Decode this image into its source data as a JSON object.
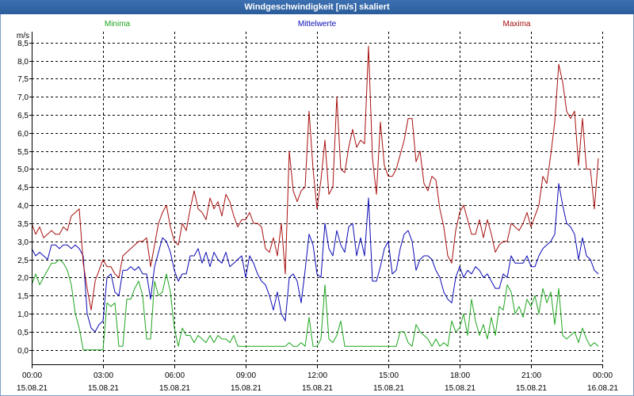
{
  "colors": {
    "titlebar": "#2b5d9c",
    "background": "#ffffff",
    "grid": "#000000"
  },
  "chart_data": {
    "type": "line",
    "title": "Windgeschwindigkeit [m/s] skaliert",
    "ylabel": "m/s",
    "xlim": [
      "15.08.21 00:00",
      "16.08.21 00:00"
    ],
    "ylim": [
      -0.4,
      8.8
    ],
    "grid": true,
    "legend_position": "top",
    "y_ticks": [
      {
        "value": 0.0,
        "label": "0,0"
      },
      {
        "value": 0.5,
        "label": "0,5"
      },
      {
        "value": 1.0,
        "label": "1,0"
      },
      {
        "value": 1.5,
        "label": "1,5"
      },
      {
        "value": 2.0,
        "label": "2,0"
      },
      {
        "value": 2.5,
        "label": "2,5"
      },
      {
        "value": 3.0,
        "label": "3,0"
      },
      {
        "value": 3.5,
        "label": "3,5"
      },
      {
        "value": 4.0,
        "label": "4,0"
      },
      {
        "value": 4.5,
        "label": "4,5"
      },
      {
        "value": 5.0,
        "label": "5,0"
      },
      {
        "value": 5.5,
        "label": "5,5"
      },
      {
        "value": 6.0,
        "label": "6,0"
      },
      {
        "value": 6.5,
        "label": "6,5"
      },
      {
        "value": 7.0,
        "label": "7,0"
      },
      {
        "value": 7.5,
        "label": "7,5"
      },
      {
        "value": 8.0,
        "label": "8,0"
      },
      {
        "value": 8.5,
        "label": "8,5"
      }
    ],
    "x_ticks": [
      {
        "at": "15.08.21 00:00",
        "label": "00:00",
        "date": "15.08.21"
      },
      {
        "at": "15.08.21 03:00",
        "label": "03:00",
        "date": "15.08.21"
      },
      {
        "at": "15.08.21 06:00",
        "label": "06:00",
        "date": "15.08.21"
      },
      {
        "at": "15.08.21 09:00",
        "label": "09:00",
        "date": "15.08.21"
      },
      {
        "at": "15.08.21 12:00",
        "label": "12:00",
        "date": "15.08.21"
      },
      {
        "at": "15.08.21 15:00",
        "label": "15:00",
        "date": "15.08.21"
      },
      {
        "at": "15.08.21 18:00",
        "label": "18:00",
        "date": "15.08.21"
      },
      {
        "at": "15.08.21 21:00",
        "label": "21:00",
        "date": "15.08.21"
      },
      {
        "at": "16.08.21 00:00",
        "label": "00:00",
        "date": "16.08.21"
      }
    ],
    "x": [
      "15.08.21 00:00",
      "15.08.21 00:10",
      "15.08.21 00:20",
      "15.08.21 00:30",
      "15.08.21 00:40",
      "15.08.21 00:50",
      "15.08.21 01:00",
      "15.08.21 01:10",
      "15.08.21 01:20",
      "15.08.21 01:30",
      "15.08.21 01:40",
      "15.08.21 01:50",
      "15.08.21 02:00",
      "15.08.21 02:10",
      "15.08.21 02:20",
      "15.08.21 02:30",
      "15.08.21 02:40",
      "15.08.21 02:50",
      "15.08.21 03:00",
      "15.08.21 03:10",
      "15.08.21 03:20",
      "15.08.21 03:30",
      "15.08.21 03:40",
      "15.08.21 03:50",
      "15.08.21 04:00",
      "15.08.21 04:10",
      "15.08.21 04:20",
      "15.08.21 04:30",
      "15.08.21 04:40",
      "15.08.21 04:50",
      "15.08.21 05:00",
      "15.08.21 05:10",
      "15.08.21 05:20",
      "15.08.21 05:30",
      "15.08.21 05:40",
      "15.08.21 05:50",
      "15.08.21 06:00",
      "15.08.21 06:10",
      "15.08.21 06:20",
      "15.08.21 06:30",
      "15.08.21 06:40",
      "15.08.21 06:50",
      "15.08.21 07:00",
      "15.08.21 07:10",
      "15.08.21 07:20",
      "15.08.21 07:30",
      "15.08.21 07:40",
      "15.08.21 07:50",
      "15.08.21 08:00",
      "15.08.21 08:10",
      "15.08.21 08:20",
      "15.08.21 08:30",
      "15.08.21 08:40",
      "15.08.21 08:50",
      "15.08.21 09:00",
      "15.08.21 09:10",
      "15.08.21 09:20",
      "15.08.21 09:30",
      "15.08.21 09:40",
      "15.08.21 09:50",
      "15.08.21 10:00",
      "15.08.21 10:10",
      "15.08.21 10:20",
      "15.08.21 10:30",
      "15.08.21 10:40",
      "15.08.21 10:50",
      "15.08.21 11:00",
      "15.08.21 11:10",
      "15.08.21 11:20",
      "15.08.21 11:30",
      "15.08.21 11:40",
      "15.08.21 11:50",
      "15.08.21 12:00",
      "15.08.21 12:10",
      "15.08.21 12:20",
      "15.08.21 12:30",
      "15.08.21 12:40",
      "15.08.21 12:50",
      "15.08.21 13:00",
      "15.08.21 13:10",
      "15.08.21 13:20",
      "15.08.21 13:30",
      "15.08.21 13:40",
      "15.08.21 13:50",
      "15.08.21 14:00",
      "15.08.21 14:10",
      "15.08.21 14:20",
      "15.08.21 14:30",
      "15.08.21 14:40",
      "15.08.21 14:50",
      "15.08.21 15:00",
      "15.08.21 15:10",
      "15.08.21 15:20",
      "15.08.21 15:30",
      "15.08.21 15:40",
      "15.08.21 15:50",
      "15.08.21 16:00",
      "15.08.21 16:10",
      "15.08.21 16:20",
      "15.08.21 16:30",
      "15.08.21 16:40",
      "15.08.21 16:50",
      "15.08.21 17:00",
      "15.08.21 17:10",
      "15.08.21 17:20",
      "15.08.21 17:30",
      "15.08.21 17:40",
      "15.08.21 17:50",
      "15.08.21 18:00",
      "15.08.21 18:10",
      "15.08.21 18:20",
      "15.08.21 18:30",
      "15.08.21 18:40",
      "15.08.21 18:50",
      "15.08.21 19:00",
      "15.08.21 19:10",
      "15.08.21 19:20",
      "15.08.21 19:30",
      "15.08.21 19:40",
      "15.08.21 19:50",
      "15.08.21 20:00",
      "15.08.21 20:10",
      "15.08.21 20:20",
      "15.08.21 20:30",
      "15.08.21 20:40",
      "15.08.21 20:50",
      "15.08.21 21:00",
      "15.08.21 21:10",
      "15.08.21 21:20",
      "15.08.21 21:30",
      "15.08.21 21:40",
      "15.08.21 21:50",
      "15.08.21 22:00",
      "15.08.21 22:10",
      "15.08.21 22:20",
      "15.08.21 22:30",
      "15.08.21 22:40",
      "15.08.21 22:50",
      "15.08.21 23:00",
      "15.08.21 23:10",
      "15.08.21 23:20",
      "15.08.21 23:30",
      "15.08.21 23:40",
      "15.08.21 23:50"
    ],
    "series": [
      {
        "name": "Minima",
        "color": "#1fa51f",
        "values": [
          1.8,
          2.1,
          1.8,
          2.0,
          2.2,
          2.4,
          2.4,
          2.5,
          2.4,
          2.2,
          1.8,
          1.0,
          0.6,
          0.0,
          0.0,
          0.0,
          0.0,
          0.0,
          0.0,
          1.3,
          1.2,
          1.3,
          0.1,
          0.1,
          1.4,
          1.4,
          1.7,
          1.9,
          1.5,
          0.3,
          0.3,
          1.9,
          1.5,
          1.6,
          2.1,
          1.6,
          0.6,
          0.1,
          0.6,
          0.4,
          0.4,
          0.2,
          0.4,
          0.3,
          0.2,
          0.4,
          0.2,
          0.4,
          0.3,
          0.3,
          0.2,
          0.4,
          0.1,
          0.1,
          0.1,
          0.1,
          0.1,
          0.1,
          0.1,
          0.1,
          0.1,
          0.1,
          0.1,
          0.1,
          0.1,
          0.2,
          0.1,
          0.1,
          0.2,
          0.1,
          0.9,
          0.1,
          0.1,
          0.3,
          1.8,
          0.3,
          0.2,
          0.4,
          0.8,
          0.1,
          0.1,
          0.1,
          0.1,
          0.1,
          0.1,
          0.1,
          0.1,
          0.1,
          0.1,
          0.1,
          0.1,
          0.1,
          0.1,
          0.5,
          0.5,
          0.2,
          0.1,
          0.7,
          0.5,
          0.4,
          0.3,
          0.1,
          0.3,
          0.1,
          0.2,
          0.1,
          0.8,
          0.5,
          0.6,
          1.0,
          0.4,
          1.4,
          0.8,
          0.4,
          0.7,
          0.3,
          0.9,
          0.4,
          1.2,
          1.1,
          1.8,
          1.6,
          1.0,
          1.2,
          0.9,
          1.4,
          1.2,
          1.5,
          1.0,
          1.7,
          1.3,
          1.6,
          0.7,
          1.7,
          0.4,
          0.3,
          0.4,
          0.5,
          0.2,
          0.6,
          0.3,
          0.1,
          0.2,
          0.1
        ]
      },
      {
        "name": "Mittelwerte",
        "color": "#0a0ab4",
        "values": [
          2.8,
          2.6,
          2.7,
          2.6,
          2.5,
          2.9,
          2.9,
          2.8,
          2.9,
          2.9,
          2.8,
          2.9,
          2.8,
          2.6,
          1.0,
          0.6,
          0.5,
          0.7,
          0.8,
          2.0,
          2.1,
          1.6,
          1.5,
          2.2,
          2.2,
          2.3,
          2.2,
          2.3,
          2.1,
          2.1,
          1.4,
          2.3,
          2.7,
          3.1,
          3.0,
          2.7,
          2.2,
          1.9,
          2.1,
          2.1,
          2.6,
          2.6,
          2.8,
          2.4,
          2.7,
          2.3,
          2.7,
          2.5,
          2.4,
          2.7,
          2.3,
          2.4,
          2.5,
          2.6,
          2.0,
          2.6,
          2.4,
          2.1,
          1.9,
          1.8,
          1.5,
          1.1,
          1.6,
          1.0,
          0.8,
          2.0,
          2.1,
          1.9,
          1.3,
          2.2,
          3.2,
          2.9,
          2.1,
          2.0,
          3.5,
          2.8,
          2.6,
          3.3,
          2.9,
          2.7,
          3.4,
          3.5,
          2.6,
          3.1,
          2.6,
          4.2,
          1.9,
          1.9,
          2.3,
          2.8,
          3.0,
          2.1,
          2.2,
          2.8,
          3.2,
          3.3,
          3.0,
          2.2,
          2.5,
          2.6,
          2.6,
          2.5,
          2.2,
          2.0,
          1.6,
          1.4,
          1.3,
          2.0,
          2.3,
          2.0,
          2.2,
          2.1,
          2.3,
          2.2,
          2.0,
          2.1,
          1.9,
          1.7,
          1.7,
          2.1,
          2.0,
          2.6,
          2.4,
          2.4,
          2.4,
          2.6,
          2.3,
          2.3,
          2.6,
          2.8,
          2.9,
          3.0,
          3.2,
          4.6,
          4.0,
          3.5,
          3.4,
          3.2,
          2.5,
          3.1,
          2.6,
          2.5,
          2.2,
          2.1
        ]
      },
      {
        "name": "Maxima",
        "color": "#a80f0f",
        "values": [
          3.5,
          3.2,
          3.4,
          3.1,
          3.2,
          3.3,
          3.2,
          3.2,
          3.4,
          3.3,
          3.7,
          3.8,
          3.9,
          2.4,
          1.7,
          1.1,
          1.9,
          2.2,
          2.5,
          2.3,
          2.3,
          2.1,
          2.0,
          2.6,
          2.7,
          2.8,
          2.9,
          3.0,
          3.0,
          3.1,
          2.3,
          2.9,
          3.5,
          3.8,
          4.0,
          3.4,
          3.0,
          2.9,
          3.5,
          3.3,
          3.9,
          4.4,
          3.9,
          3.8,
          3.6,
          4.2,
          3.9,
          4.1,
          3.7,
          4.3,
          4.1,
          3.7,
          3.4,
          3.6,
          3.6,
          3.8,
          3.5,
          3.5,
          3.4,
          2.8,
          2.7,
          3.1,
          2.6,
          3.5,
          2.1,
          5.5,
          4.4,
          4.1,
          4.4,
          4.5,
          6.6,
          5.0,
          3.9,
          4.7,
          5.8,
          4.3,
          4.5,
          7.0,
          5.0,
          4.9,
          5.6,
          6.1,
          5.6,
          5.8,
          5.7,
          8.4,
          5.3,
          4.3,
          6.3,
          5.1,
          4.8,
          4.8,
          5.0,
          5.4,
          5.8,
          6.4,
          6.4,
          5.2,
          5.5,
          4.6,
          4.4,
          4.8,
          4.7,
          3.9,
          3.4,
          2.6,
          2.4,
          3.3,
          3.8,
          4.0,
          3.6,
          3.2,
          3.2,
          3.6,
          3.1,
          3.6,
          3.2,
          2.7,
          2.9,
          3.0,
          3.0,
          3.5,
          3.4,
          3.3,
          3.5,
          3.8,
          3.4,
          3.7,
          4.0,
          4.8,
          4.6,
          5.4,
          6.3,
          7.9,
          7.4,
          6.6,
          6.4,
          6.6,
          5.1,
          6.4,
          5.0,
          5.0,
          3.9,
          5.3
        ]
      }
    ]
  }
}
